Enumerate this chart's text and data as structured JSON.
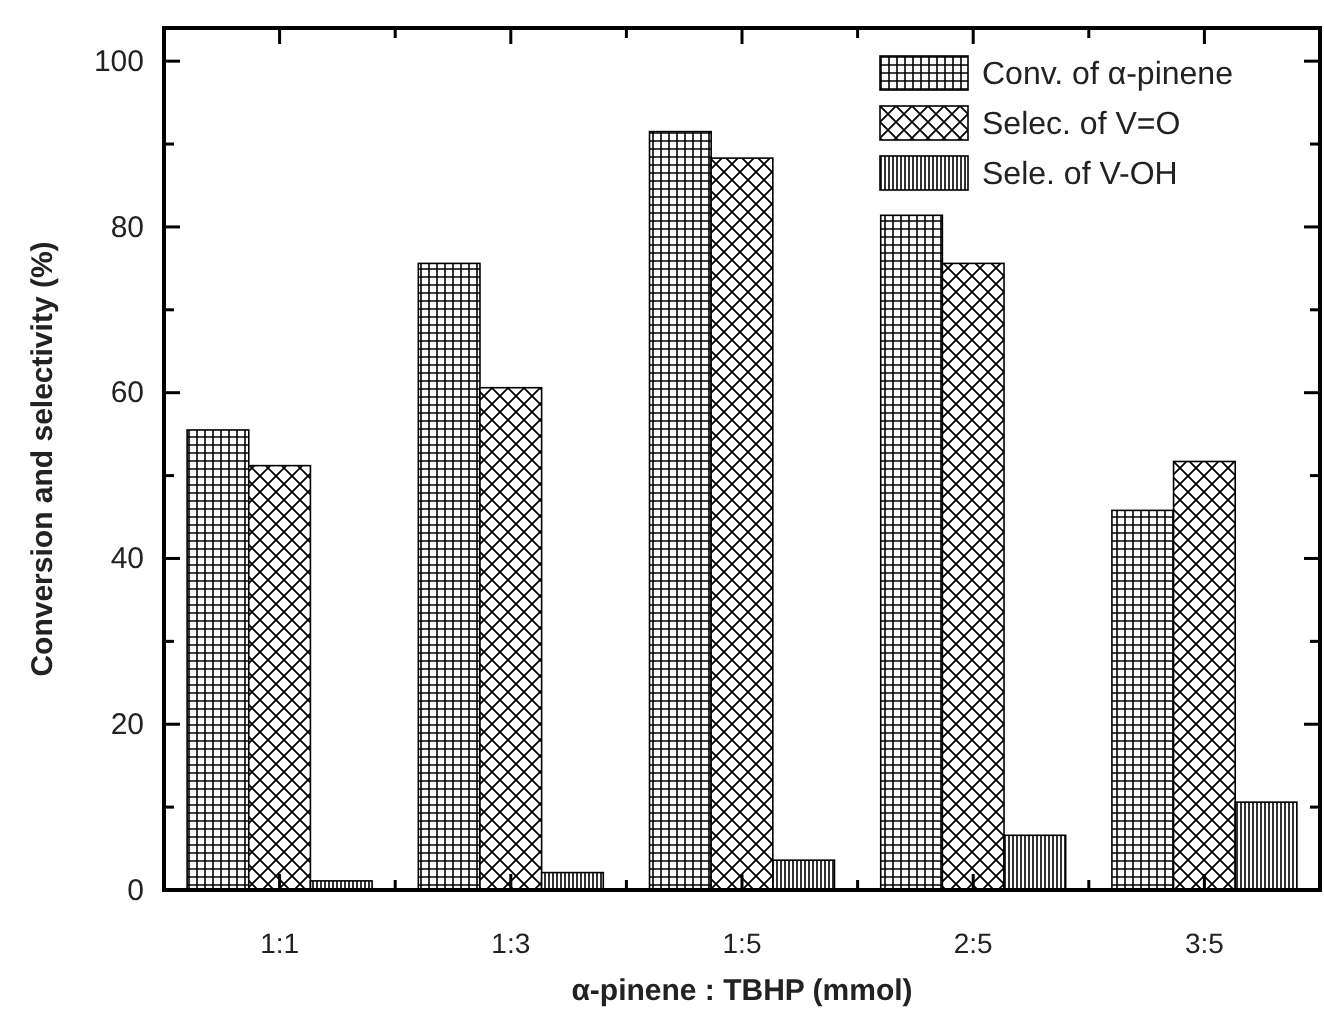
{
  "chart_data": {
    "type": "bar",
    "xlabel": "α-pinene : TBHP (mmol)",
    "ylabel": "Conversion and selectivity (%)",
    "categories": [
      "1:1",
      "1:3",
      "1:5",
      "2:5",
      "3:5"
    ],
    "series": [
      {
        "name": "Conv. of α-pinene",
        "color": "#000000",
        "values": [
          55.5,
          75.6,
          91.5,
          81.4,
          45.8
        ]
      },
      {
        "name": "Selec. of V=O",
        "color": "#000000",
        "values": [
          51.2,
          60.6,
          88.3,
          75.6,
          51.7
        ]
      },
      {
        "name": "Sele. of V-OH",
        "color": "#000000",
        "values": [
          1.1,
          2.1,
          3.6,
          6.6,
          10.6
        ]
      }
    ],
    "ylim": [
      0,
      104
    ],
    "yticks": [
      0,
      {
        "value": 10,
        "label": null
      },
      20,
      {
        "value": 30,
        "label": null
      },
      40,
      {
        "value": 50,
        "label": null
      },
      60,
      {
        "value": 70,
        "label": null
      },
      80,
      {
        "value": 90,
        "label": null
      },
      100
    ],
    "grid": false,
    "legend": "top right"
  }
}
